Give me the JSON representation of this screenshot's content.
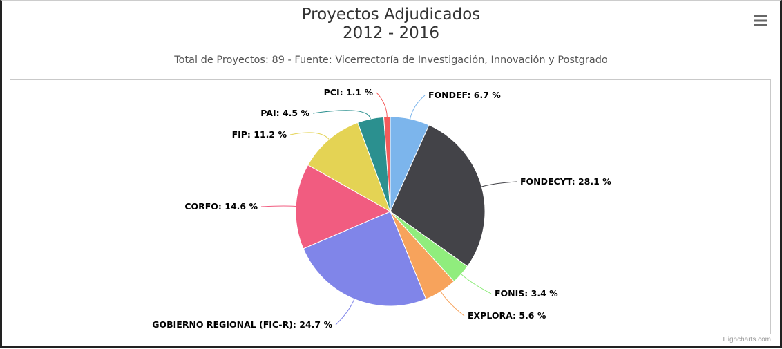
{
  "chart_data": {
    "type": "pie",
    "title_line1": "Proyectos Adjudicados",
    "title_line2": "2012 - 2016",
    "subtitle": "Total de Proyectos: 89 - Fuente: Vicerrectoría de Investigación, Innovación y Postgrado",
    "unit": "%",
    "slices": [
      {
        "name": "FONDEF",
        "value": 6.7,
        "label": "FONDEF: 6.7 %",
        "color": "#7cb5ec"
      },
      {
        "name": "FONDECYT",
        "value": 28.1,
        "label": "FONDECYT: 28.1 %",
        "color": "#434348"
      },
      {
        "name": "FONIS",
        "value": 3.4,
        "label": "FONIS: 3.4 %",
        "color": "#90ed7d"
      },
      {
        "name": "EXPLORA",
        "value": 5.6,
        "label": "EXPLORA: 5.6 %",
        "color": "#f7a35c"
      },
      {
        "name": "GOBIERNO REGIONAL (FIC-R)",
        "value": 24.7,
        "label": "GOBIERNO REGIONAL (FIC-R): 24.7 %",
        "color": "#8085e9"
      },
      {
        "name": "CORFO",
        "value": 14.6,
        "label": "CORFO: 14.6 %",
        "color": "#f15c80"
      },
      {
        "name": "FIP",
        "value": 11.2,
        "label": "FIP: 11.2 %",
        "color": "#e4d354"
      },
      {
        "name": "PAI",
        "value": 4.5,
        "label": "PAI: 4.5 %",
        "color": "#2b908f"
      },
      {
        "name": "PCI",
        "value": 1.1,
        "label": "PCI: 1.1 %",
        "color": "#f45b5b"
      }
    ]
  },
  "credits": "Highcharts.com",
  "menu_icon": "hamburger-menu-icon"
}
